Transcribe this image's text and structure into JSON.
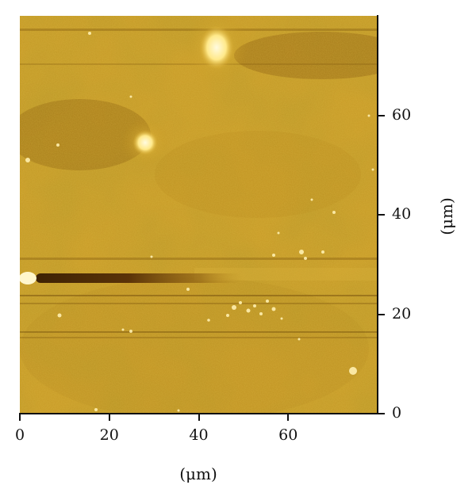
{
  "image": {
    "kind": "afm-height-map",
    "palette": [
      "#5a3606",
      "#9a6a12",
      "#c8981e",
      "#e8c850",
      "#fff4b0"
    ]
  },
  "x_axis": {
    "title": "(μm)",
    "ticks": [
      "0",
      "20",
      "40",
      "60"
    ],
    "tick_values": [
      0,
      20,
      40,
      60
    ],
    "range": [
      0,
      80
    ]
  },
  "y_axis": {
    "title": "(μm)",
    "ticks": [
      "0",
      "20",
      "40",
      "60"
    ],
    "tick_values": [
      0,
      20,
      40,
      60
    ],
    "range": [
      0,
      80
    ]
  }
}
